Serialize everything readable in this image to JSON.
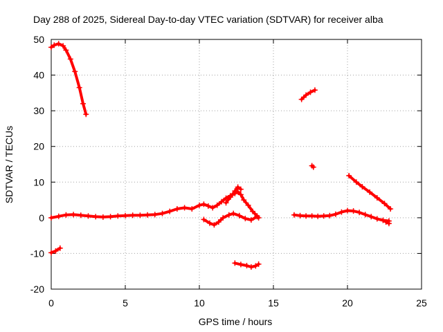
{
  "chart_data": {
    "type": "scatter",
    "title": "Day 288 of 2025, Sidereal Day-to-day VTEC variation (SDTVAR) for receiver alba",
    "xlabel": "GPS time / hours",
    "ylabel": "SDTVAR / TECUs",
    "xlim": [
      0,
      25
    ],
    "ylim": [
      -20,
      50
    ],
    "xticks": [
      0,
      5,
      10,
      15,
      20,
      25
    ],
    "yticks": [
      -20,
      -10,
      0,
      10,
      20,
      30,
      40,
      50
    ],
    "grid": true,
    "marker": "+",
    "color": "#ff0000",
    "segments": [
      {
        "name": "early-decay",
        "points": [
          [
            0,
            47.8
          ],
          [
            0.2,
            48.4
          ],
          [
            0.5,
            48.8
          ],
          [
            0.8,
            48.2
          ],
          [
            1.0,
            47.0
          ],
          [
            1.3,
            44.5
          ],
          [
            1.6,
            41.0
          ],
          [
            1.9,
            36.5
          ],
          [
            2.15,
            32.0
          ],
          [
            2.35,
            29.0
          ]
        ]
      },
      {
        "name": "early-negative",
        "points": [
          [
            0,
            -9.8
          ],
          [
            0.3,
            -9.3
          ],
          [
            0.6,
            -8.5
          ]
        ]
      },
      {
        "name": "baseline-1",
        "points": [
          [
            0,
            0.0
          ],
          [
            0.5,
            0.4
          ],
          [
            1.0,
            0.8
          ],
          [
            1.5,
            0.9
          ],
          [
            2.0,
            0.7
          ],
          [
            2.5,
            0.5
          ],
          [
            3.0,
            0.3
          ],
          [
            3.5,
            0.2
          ],
          [
            4.0,
            0.3
          ],
          [
            4.5,
            0.5
          ],
          [
            5.0,
            0.6
          ],
          [
            5.5,
            0.7
          ],
          [
            6.0,
            0.7
          ],
          [
            6.5,
            0.8
          ],
          [
            7.0,
            0.9
          ],
          [
            7.5,
            1.2
          ],
          [
            8.0,
            1.8
          ],
          [
            8.5,
            2.5
          ],
          [
            9.0,
            2.8
          ],
          [
            9.5,
            2.5
          ],
          [
            10.0,
            3.5
          ],
          [
            10.3,
            3.8
          ],
          [
            10.6,
            3.3
          ],
          [
            10.9,
            2.8
          ],
          [
            11.2,
            3.5
          ],
          [
            11.5,
            4.5
          ],
          [
            11.8,
            5.5
          ],
          [
            12.1,
            6.2
          ],
          [
            12.4,
            6.8
          ],
          [
            12.6,
            7.3
          ],
          [
            12.8,
            6.5
          ],
          [
            13.0,
            5.0
          ],
          [
            13.3,
            3.5
          ],
          [
            13.6,
            1.8
          ],
          [
            13.9,
            0.5
          ],
          [
            14.0,
            0.0
          ]
        ]
      },
      {
        "name": "lower-arc",
        "points": [
          [
            10.3,
            -0.5
          ],
          [
            10.7,
            -1.5
          ],
          [
            11.0,
            -2.0
          ],
          [
            11.3,
            -1.2
          ],
          [
            11.6,
            0.0
          ],
          [
            12.0,
            0.8
          ],
          [
            12.3,
            1.2
          ],
          [
            12.7,
            0.6
          ],
          [
            13.1,
            -0.2
          ],
          [
            13.5,
            -0.6
          ],
          [
            13.9,
            0.3
          ]
        ]
      },
      {
        "name": "upper-arc",
        "points": [
          [
            11.8,
            4.2
          ],
          [
            12.1,
            5.8
          ],
          [
            12.4,
            7.5
          ],
          [
            12.6,
            8.6
          ],
          [
            12.8,
            8.0
          ]
        ]
      },
      {
        "name": "mid-negative",
        "points": [
          [
            12.4,
            -12.7
          ],
          [
            12.8,
            -13.1
          ],
          [
            13.2,
            -13.4
          ],
          [
            13.5,
            -13.8
          ],
          [
            13.8,
            -13.5
          ],
          [
            14.0,
            -13.0
          ]
        ]
      },
      {
        "name": "baseline-2",
        "points": [
          [
            16.4,
            0.8
          ],
          [
            16.8,
            0.6
          ],
          [
            17.2,
            0.5
          ],
          [
            17.6,
            0.5
          ],
          [
            18.0,
            0.4
          ],
          [
            18.4,
            0.5
          ],
          [
            18.8,
            0.6
          ],
          [
            19.2,
            1.0
          ],
          [
            19.6,
            1.6
          ],
          [
            20.0,
            2.0
          ],
          [
            20.4,
            1.9
          ],
          [
            20.8,
            1.5
          ],
          [
            21.2,
            0.9
          ],
          [
            21.6,
            0.3
          ],
          [
            22.0,
            -0.3
          ],
          [
            22.4,
            -0.7
          ],
          [
            22.8,
            -0.9
          ]
        ]
      },
      {
        "name": "late-rising",
        "points": [
          [
            16.9,
            33.2
          ],
          [
            17.2,
            34.4
          ],
          [
            17.5,
            35.2
          ],
          [
            17.8,
            35.8
          ]
        ]
      },
      {
        "name": "late-point",
        "points": [
          [
            17.6,
            14.6
          ],
          [
            17.7,
            14.2
          ]
        ]
      },
      {
        "name": "late-decay",
        "points": [
          [
            20.1,
            11.8
          ],
          [
            20.6,
            10.0
          ],
          [
            21.0,
            8.7
          ],
          [
            21.5,
            7.2
          ],
          [
            22.0,
            5.6
          ],
          [
            22.5,
            4.0
          ],
          [
            22.9,
            2.5
          ]
        ]
      },
      {
        "name": "late-negative",
        "points": [
          [
            22.6,
            -1.2
          ],
          [
            22.8,
            -1.6
          ]
        ]
      }
    ]
  }
}
